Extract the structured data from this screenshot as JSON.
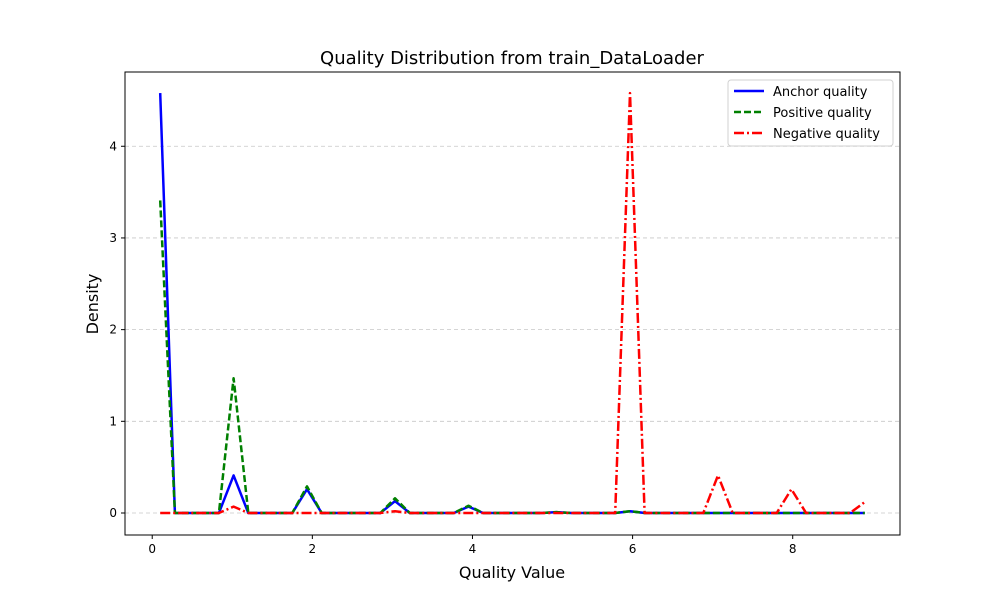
{
  "chart_data": {
    "type": "line",
    "title": "Quality Distribution from train_DataLoader",
    "xlabel": "Quality Value",
    "ylabel": "Density",
    "xlim": [
      -0.34,
      9.34
    ],
    "ylim": [
      -0.24,
      4.81
    ],
    "xticks": [
      0,
      2,
      4,
      6,
      8
    ],
    "yticks": [
      0,
      1,
      2,
      3,
      4
    ],
    "grid": "y-dashed",
    "legend_position": "top-right",
    "x": [
      0.1,
      0.283,
      0.467,
      0.65,
      0.833,
      1.017,
      1.2,
      1.383,
      1.567,
      1.75,
      1.933,
      2.117,
      2.3,
      2.483,
      2.667,
      2.85,
      3.033,
      3.217,
      3.4,
      3.583,
      3.767,
      3.95,
      4.133,
      4.317,
      4.5,
      4.683,
      4.867,
      5.05,
      5.233,
      5.417,
      5.6,
      5.783,
      5.967,
      6.15,
      6.333,
      6.517,
      6.7,
      6.883,
      7.067,
      7.25,
      7.433,
      7.617,
      7.8,
      7.983,
      8.167,
      8.35,
      8.533,
      8.717,
      8.9
    ],
    "series": [
      {
        "name": "Anchor quality",
        "color": "#0000ff",
        "style": "solid",
        "values": [
          4.58,
          0,
          0,
          0,
          0,
          0.41,
          0,
          0,
          0,
          0,
          0.26,
          0,
          0,
          0,
          0,
          0,
          0.13,
          0,
          0,
          0,
          0,
          0.07,
          0,
          0,
          0,
          0,
          0,
          0.01,
          0,
          0,
          0,
          0,
          0.02,
          0,
          0,
          0,
          0,
          0,
          0,
          0,
          0,
          0,
          0,
          0,
          0,
          0,
          0,
          0,
          0
        ]
      },
      {
        "name": "Positive quality",
        "color": "#008000",
        "style": "dashed",
        "values": [
          3.41,
          0,
          0,
          0,
          0,
          1.47,
          0,
          0,
          0,
          0,
          0.29,
          0,
          0,
          0,
          0,
          0,
          0.16,
          0,
          0,
          0,
          0,
          0.08,
          0,
          0,
          0,
          0,
          0,
          0.01,
          0,
          0,
          0,
          0,
          0.02,
          0,
          0,
          0,
          0,
          0,
          0,
          0,
          0,
          0,
          0,
          0,
          0,
          0,
          0,
          0,
          0
        ]
      },
      {
        "name": "Negative quality",
        "color": "#ff0000",
        "style": "dashdot",
        "values": [
          0,
          0,
          0,
          0,
          0,
          0.07,
          0,
          0,
          0,
          0,
          0,
          0,
          0,
          0,
          0,
          0,
          0.02,
          0,
          0,
          0,
          0,
          0,
          0,
          0,
          0,
          0,
          0,
          0,
          0,
          0,
          0,
          0,
          4.58,
          0,
          0,
          0,
          0,
          0,
          0.41,
          0,
          0,
          0,
          0,
          0.26,
          0,
          0,
          0,
          0,
          0.12
        ]
      }
    ]
  }
}
